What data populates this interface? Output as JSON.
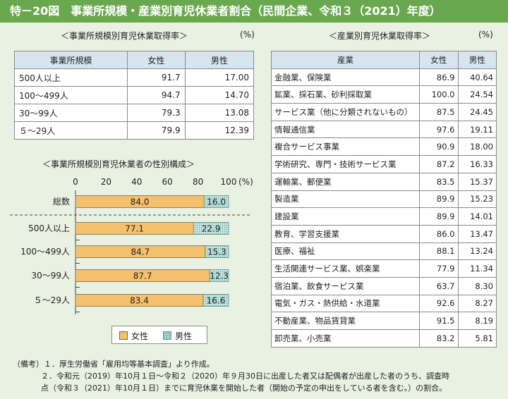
{
  "title": "特－20図　事業所規模・産業別育児休業者割合（民間企業、令和３（2021）年度）",
  "table_size": {
    "caption": "＜事業所規模別育児休業取得率＞",
    "unit": "(%)",
    "headers": [
      "事業所規模",
      "女性",
      "男性"
    ],
    "rows": [
      [
        "500人以上",
        "91.7",
        "17.00"
      ],
      [
        "100～499人",
        "94.7",
        "14.70"
      ],
      [
        "30～99人",
        "79.3",
        "13.08"
      ],
      [
        "５～29人",
        "79.9",
        "12.39"
      ]
    ]
  },
  "table_industry": {
    "caption": "＜産業別育児休業取得率＞",
    "unit": "(%)",
    "headers": [
      "産業",
      "女性",
      "男性"
    ],
    "rows": [
      [
        "金融業、保険業",
        "86.9",
        "40.64"
      ],
      [
        "鉱業、採石業、砂利採取業",
        "100.0",
        "24.54"
      ],
      [
        "サービス業（他に分類されないもの）",
        "87.5",
        "24.45"
      ],
      [
        "情報通信業",
        "97.6",
        "19.11"
      ],
      [
        "複合サービス事業",
        "90.9",
        "18.00"
      ],
      [
        "学術研究、専門・技術サービス業",
        "87.2",
        "16.33"
      ],
      [
        "運輸業、郵便業",
        "83.5",
        "15.37"
      ],
      [
        "製造業",
        "89.9",
        "15.23"
      ],
      [
        "建設業",
        "89.9",
        "14.01"
      ],
      [
        "教育、学習支援業",
        "86.0",
        "13.47"
      ],
      [
        "医療、福祉",
        "88.1",
        "13.24"
      ],
      [
        "生活関連サービス業、娯楽業",
        "77.9",
        "11.34"
      ],
      [
        "宿泊業、飲食サービス業",
        "63.7",
        "8.30"
      ],
      [
        "電気・ガス・熱供給・水道業",
        "92.6",
        "8.27"
      ],
      [
        "不動産業、物品賃貸業",
        "91.5",
        "8.19"
      ],
      [
        "卸売業、小売業",
        "83.2",
        "5.81"
      ]
    ]
  },
  "chart_data": {
    "type": "bar",
    "orientation": "horizontal",
    "stacked": true,
    "title": "＜事業所規模別育児休業者の性別構成＞",
    "categories": [
      "総数",
      "500人以上",
      "100～499人",
      "30～99人",
      "５～29人"
    ],
    "series": [
      {
        "name": "女性",
        "values": [
          84.0,
          77.1,
          84.7,
          87.7,
          83.4
        ],
        "color": "#f5c06e"
      },
      {
        "name": "男性",
        "values": [
          16.0,
          22.9,
          15.3,
          12.3,
          16.6
        ],
        "color": "#c9e6e1"
      }
    ],
    "data_labels": [
      [
        "84.0",
        "77.1",
        "84.7",
        "87.7",
        "83.4"
      ],
      [
        "16.0",
        "22.9",
        "15.3",
        "12.3",
        "16.6"
      ]
    ],
    "xlim": [
      0,
      100
    ],
    "xticks": [
      "0",
      "20",
      "40",
      "60",
      "80",
      "100"
    ],
    "xunit": "(%)",
    "grid": false,
    "legend_position": "bottom"
  },
  "notes": {
    "lead": "（備考）",
    "items": [
      "１．厚生労働省「雇用均等基本調査」より作成。",
      "２．令和元（2019）年10月１日～令和２（2020）年９月30日に出産した者又は配偶者が出産した者のうち、調査時",
      "点（令和３（2021）年10月１日）までに育児休業を開始した者（開始の予定の申出をしている者を含む。）の割合。"
    ]
  }
}
